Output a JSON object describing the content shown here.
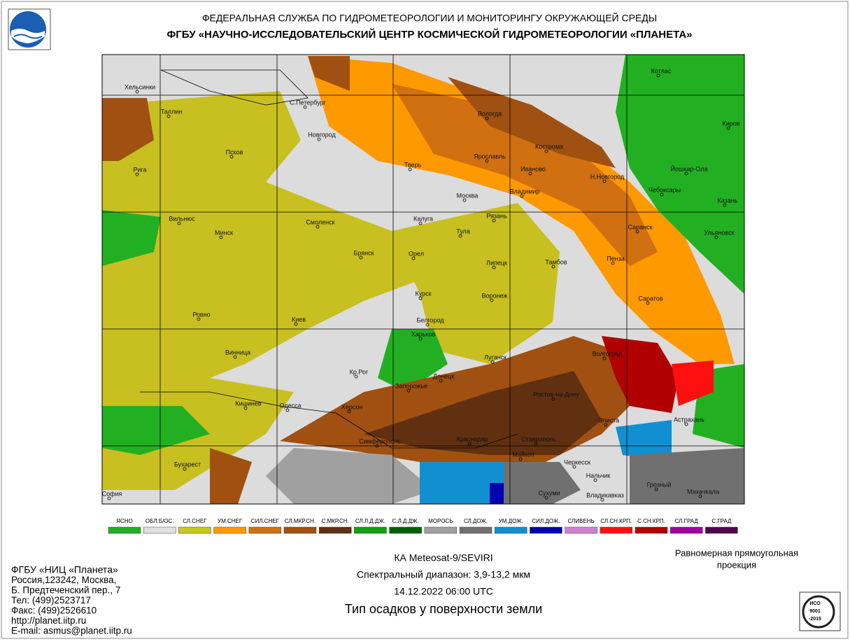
{
  "header": {
    "line1": "ФЕДЕРАЛЬНАЯ СЛУЖБА ПО ГИДРОМЕТЕОРОЛОГИИ И МОНИТОРИНГУ ОКРУЖАЮЩЕЙ СРЕДЫ",
    "line2": "ФГБУ «НАУЧНО-ИССЛЕДОВАТЕЛЬСКИЙ ЦЕНТР КОСМИЧЕСКОЙ ГИДРОМЕТЕОРОЛОГИИ «ПЛАНЕТА»"
  },
  "legend": [
    {
      "label": "ЯСНО",
      "color": "#22b022"
    },
    {
      "label": "ОБЛ.Б/ОС.",
      "color": "#e0e0e0"
    },
    {
      "label": "СЛ.СНЕГ",
      "color": "#c8c820"
    },
    {
      "label": "УМ.СНЕГ",
      "color": "#ff9900"
    },
    {
      "label": "СИЛ.СНЕГ",
      "color": "#d07010"
    },
    {
      "label": "СЛ.МКР.СН.",
      "color": "#a05010"
    },
    {
      "label": "С.МКР.СН.",
      "color": "#603010"
    },
    {
      "label": "СЛ.Л.Д.ДЖ.",
      "color": "#10a010"
    },
    {
      "label": "С.Л.Д.ДЖ.",
      "color": "#006000"
    },
    {
      "label": "МОРОСЬ",
      "color": "#a0a0a0"
    },
    {
      "label": "СЛ.ДОЖ.",
      "color": "#707070"
    },
    {
      "label": "УМ.ДОЖ.",
      "color": "#1090d0"
    },
    {
      "label": "СИЛ.ДОЖ.",
      "color": "#0000b0"
    },
    {
      "label": "СЛИВЕНЬ",
      "color": "#d080d0"
    },
    {
      "label": "СЛ.СН.КРП.",
      "color": "#ff1010"
    },
    {
      "label": "С.СН.КРП.",
      "color": "#b00000"
    },
    {
      "label": "СЛ.ГРАД",
      "color": "#a000a0"
    },
    {
      "label": "С.ГРАД",
      "color": "#500050"
    }
  ],
  "cities": [
    "Хельсинки",
    "Таллин",
    "С.Петербург",
    "Новгород",
    "Псков",
    "Рига",
    "Вологда",
    "Кострома",
    "Котлас",
    "Киров",
    "Тверь",
    "Ярославль",
    "Иваново",
    "Йошкар-Ола",
    "Москва",
    "Владимир",
    "Н.Новгород",
    "Чебоксары",
    "Казань",
    "Вильнюс",
    "Минск",
    "Смоленск",
    "Калуга",
    "Тула",
    "Рязань",
    "Саранск",
    "Ульяновск",
    "Брянск",
    "Орел",
    "Липецк",
    "Тамбов",
    "Пенза",
    "Курск",
    "Воронеж",
    "Саратов",
    "Ровно",
    "Киев",
    "Белгород",
    "Харьков",
    "Винница",
    "Волгоград",
    "Луганск",
    "Кр.Рог",
    "Донецк",
    "Запорожье",
    "Ростов-на-Дону",
    "Кишинев",
    "Одесса",
    "Херсон",
    "Элиста",
    "Астрахань",
    "Симферополь",
    "Краснодар",
    "Ставрополь",
    "Бухарест",
    "Майкоп",
    "Черкесск",
    "Нальчик",
    "Грозный",
    "Махачкала",
    "София",
    "Сухуми",
    "Владикавказ"
  ],
  "footer": {
    "org": [
      "ФГБУ «НИЦ «Планета»",
      "Россия,123242, Москва,",
      "Б. Предтеченский пер., 7",
      "Тел:   (499)2523717",
      "Факс: (499)2526610",
      "http://planet.iitp.ru",
      "E-mail: asmus@planet.iitp.ru"
    ],
    "satellite": "КА Meteosat-9/SEVIRI",
    "spectral": "Спектральный диапазон: 3,9-13,2 мкм",
    "datetime": "14.12.2022 06:00 UTC",
    "title": "Тип осадков у поверхности земли",
    "projection": [
      "Равномерная прямоугольная",
      "проекция"
    ],
    "iso": [
      "ИСО",
      "9001",
      "-2015"
    ]
  }
}
